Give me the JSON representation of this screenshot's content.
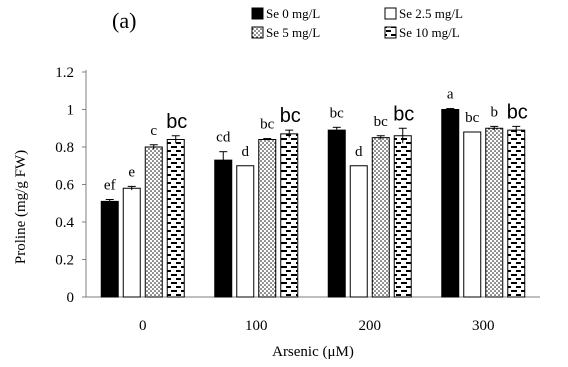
{
  "panel_label": "(a)",
  "chart_data": {
    "type": "bar",
    "title": "",
    "xlabel": "Arsenic  (μM)",
    "ylabel": "Proline  (mg/g  FW)",
    "categories": [
      "0",
      "100",
      "200",
      "300"
    ],
    "ylim": [
      0,
      1.2
    ],
    "yticks": [
      "0",
      "0.2",
      "0.4",
      "0.6",
      "0.8",
      "1",
      "1.2"
    ],
    "grid": false,
    "legend_position": "top-right",
    "series": [
      {
        "name": "Se 0 mg/L",
        "pattern": "solid",
        "values": [
          0.51,
          0.73,
          0.89,
          1.0
        ],
        "errors": [
          0.01,
          0.045,
          0.015,
          0.005
        ],
        "letters": [
          "ef",
          "cd",
          "bc",
          "a"
        ]
      },
      {
        "name": "Se 2.5 mg/L",
        "pattern": "hollow",
        "values": [
          0.58,
          0.7,
          0.7,
          0.88
        ],
        "errors": [
          0.01,
          0.0,
          0.0,
          0.0
        ],
        "letters": [
          "e",
          "d",
          "d",
          "bc"
        ]
      },
      {
        "name": "Se 5 mg/L",
        "pattern": "dots",
        "values": [
          0.8,
          0.84,
          0.85,
          0.9
        ],
        "errors": [
          0.012,
          0.005,
          0.01,
          0.01
        ],
        "letters": [
          "c",
          "bc",
          "bc",
          "b"
        ]
      },
      {
        "name": "Se 10 mg/L",
        "pattern": "dashes",
        "values": [
          0.84,
          0.87,
          0.86,
          0.89
        ],
        "errors": [
          0.02,
          0.02,
          0.04,
          0.02
        ],
        "letters": [
          "bc",
          "bc",
          "bc",
          "bc"
        ]
      }
    ],
    "colors": {
      "fill_dark": "#000000",
      "axis": "#7f7f7f",
      "text": "#000000"
    }
  }
}
